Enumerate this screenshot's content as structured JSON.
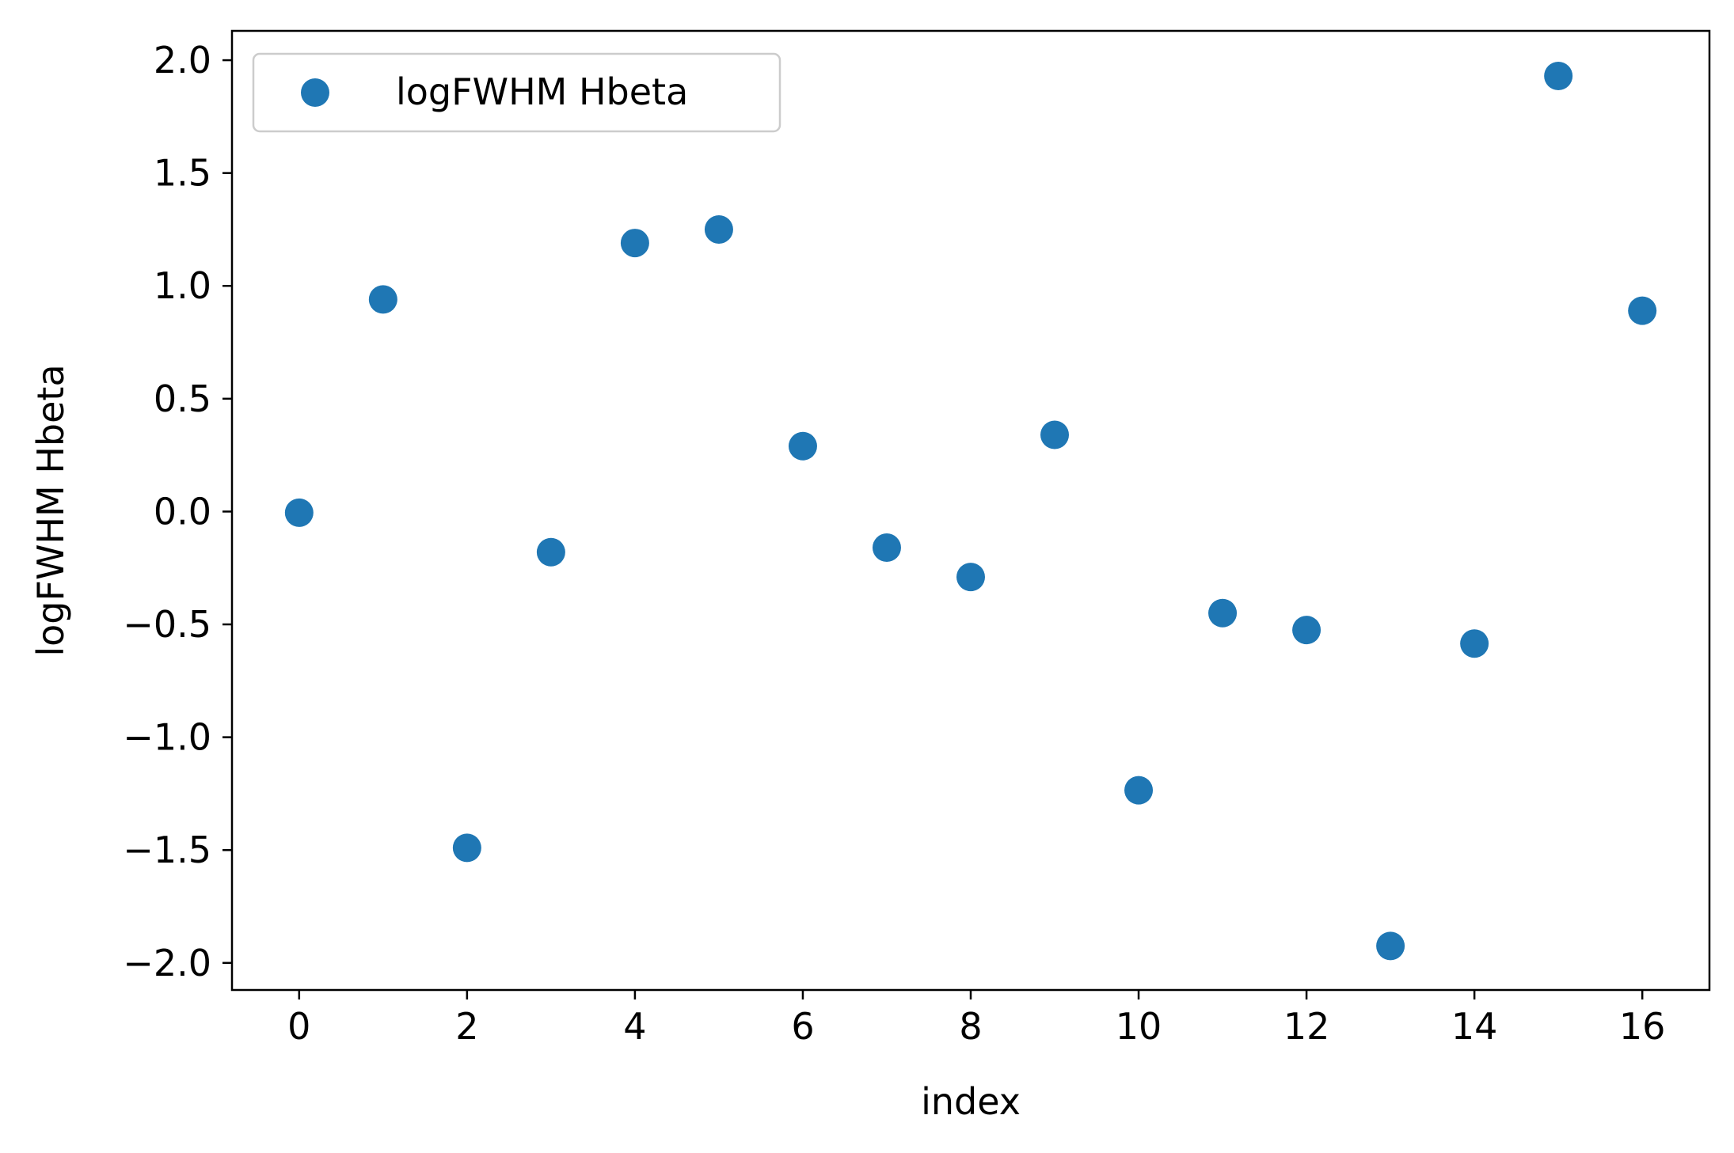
{
  "chart_data": {
    "type": "scatter",
    "title": "",
    "xlabel": "index",
    "ylabel": "logFWHM Hbeta",
    "xlim": [
      -0.8,
      16.8
    ],
    "ylim": [
      -2.12,
      2.13
    ],
    "xticks": [
      0,
      2,
      4,
      6,
      8,
      10,
      12,
      14,
      16
    ],
    "xtick_labels": [
      "0",
      "2",
      "4",
      "6",
      "8",
      "10",
      "12",
      "14",
      "16"
    ],
    "yticks": [
      2.0,
      1.5,
      1.0,
      0.5,
      0.0,
      -0.5,
      -1.0,
      -1.5,
      -2.0
    ],
    "ytick_labels": [
      "2.0",
      "1.5",
      "1.0",
      "0.5",
      "0.0",
      "−0.5",
      "−1.0",
      "−1.5",
      "−2.0"
    ],
    "grid": false,
    "legend": {
      "position": "top-left"
    },
    "series": [
      {
        "name": "logFWHM Hbeta",
        "color": "#1f77b4",
        "x": [
          0,
          1,
          2,
          3,
          4,
          5,
          6,
          7,
          8,
          9,
          10,
          11,
          12,
          13,
          14,
          15,
          16
        ],
        "y": [
          -0.005,
          0.94,
          -1.49,
          -0.18,
          1.19,
          1.25,
          0.29,
          -0.16,
          -0.29,
          0.34,
          -1.235,
          -0.45,
          -0.525,
          -1.925,
          -0.585,
          1.93,
          0.89
        ]
      }
    ]
  }
}
